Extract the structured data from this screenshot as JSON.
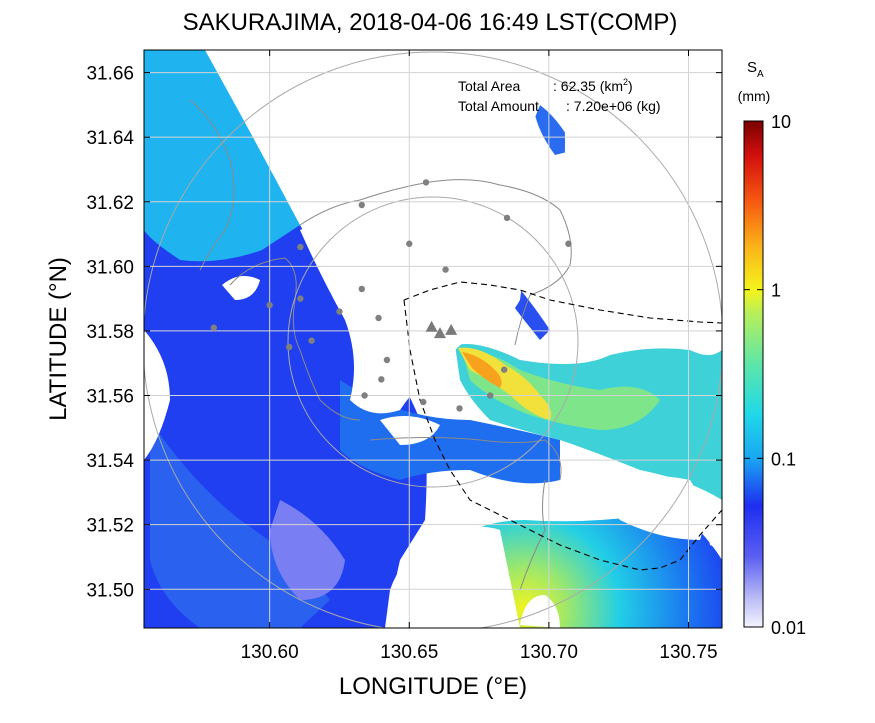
{
  "chart_data": {
    "type": "heatmap",
    "title": "SAKURAJIMA, 2018-04-06 16:49 LST(COMP)",
    "xlabel": "LONGITUDE (°E)",
    "ylabel": "LATITUDE (°N)",
    "xlim": [
      130.555,
      130.762
    ],
    "ylim": [
      31.488,
      31.667
    ],
    "xticks": [
      130.6,
      130.65,
      130.7,
      130.75
    ],
    "xtick_labels": [
      "130.60",
      "130.65",
      "130.70",
      "130.75"
    ],
    "yticks": [
      31.5,
      31.52,
      31.54,
      31.56,
      31.58,
      31.6,
      31.62,
      31.64,
      31.66
    ],
    "ytick_labels": [
      "31.50",
      "31.52",
      "31.54",
      "31.56",
      "31.58",
      "31.60",
      "31.62",
      "31.64",
      "31.66"
    ],
    "grid": true,
    "annotations": {
      "total_area_label": "Total Area",
      "total_area_value": ": 62.35 (km",
      "total_area_unit_sup": "2",
      "total_area_close": ")",
      "total_amount_label": "Total Amount",
      "total_amount_value": ": 7.20e+06 (kg)"
    },
    "colorbar": {
      "label_main": "S",
      "label_sub": "A",
      "unit": "(mm)",
      "scale": "log",
      "range": [
        0.01,
        10
      ],
      "tick_labels": [
        "10",
        "1",
        "0.1",
        "0.01"
      ],
      "tick_values": [
        10,
        1,
        0.1,
        0.01
      ]
    },
    "vent_markers": [
      {
        "lon": 130.658,
        "lat": 31.581
      },
      {
        "lon": 130.661,
        "lat": 31.579
      },
      {
        "lon": 130.665,
        "lat": 31.58
      }
    ],
    "station_points": [
      [
        130.611,
        31.606
      ],
      [
        130.633,
        31.619
      ],
      [
        130.656,
        31.626
      ],
      [
        130.685,
        31.615
      ],
      [
        130.707,
        31.607
      ],
      [
        130.65,
        31.607
      ],
      [
        130.663,
        31.599
      ],
      [
        130.633,
        31.593
      ],
      [
        130.625,
        31.586
      ],
      [
        130.639,
        31.584
      ],
      [
        130.611,
        31.59
      ],
      [
        130.6,
        31.588
      ],
      [
        130.607,
        31.575
      ],
      [
        130.615,
        31.577
      ],
      [
        130.642,
        31.571
      ],
      [
        130.64,
        31.565
      ],
      [
        130.655,
        31.558
      ],
      [
        130.668,
        31.556
      ],
      [
        130.679,
        31.56
      ],
      [
        130.684,
        31.568
      ],
      [
        130.634,
        31.56
      ],
      [
        130.58,
        31.581
      ]
    ],
    "colors": {
      "mid_blue": "#1f3ff0",
      "cyan": "#1cc6f0",
      "green": "#7be58a",
      "yellow": "#f6e13c",
      "orange": "#f79a1c",
      "no_data": "#ffffff",
      "grid": "#cfcfcf",
      "coast": "#8a8a8a"
    }
  }
}
